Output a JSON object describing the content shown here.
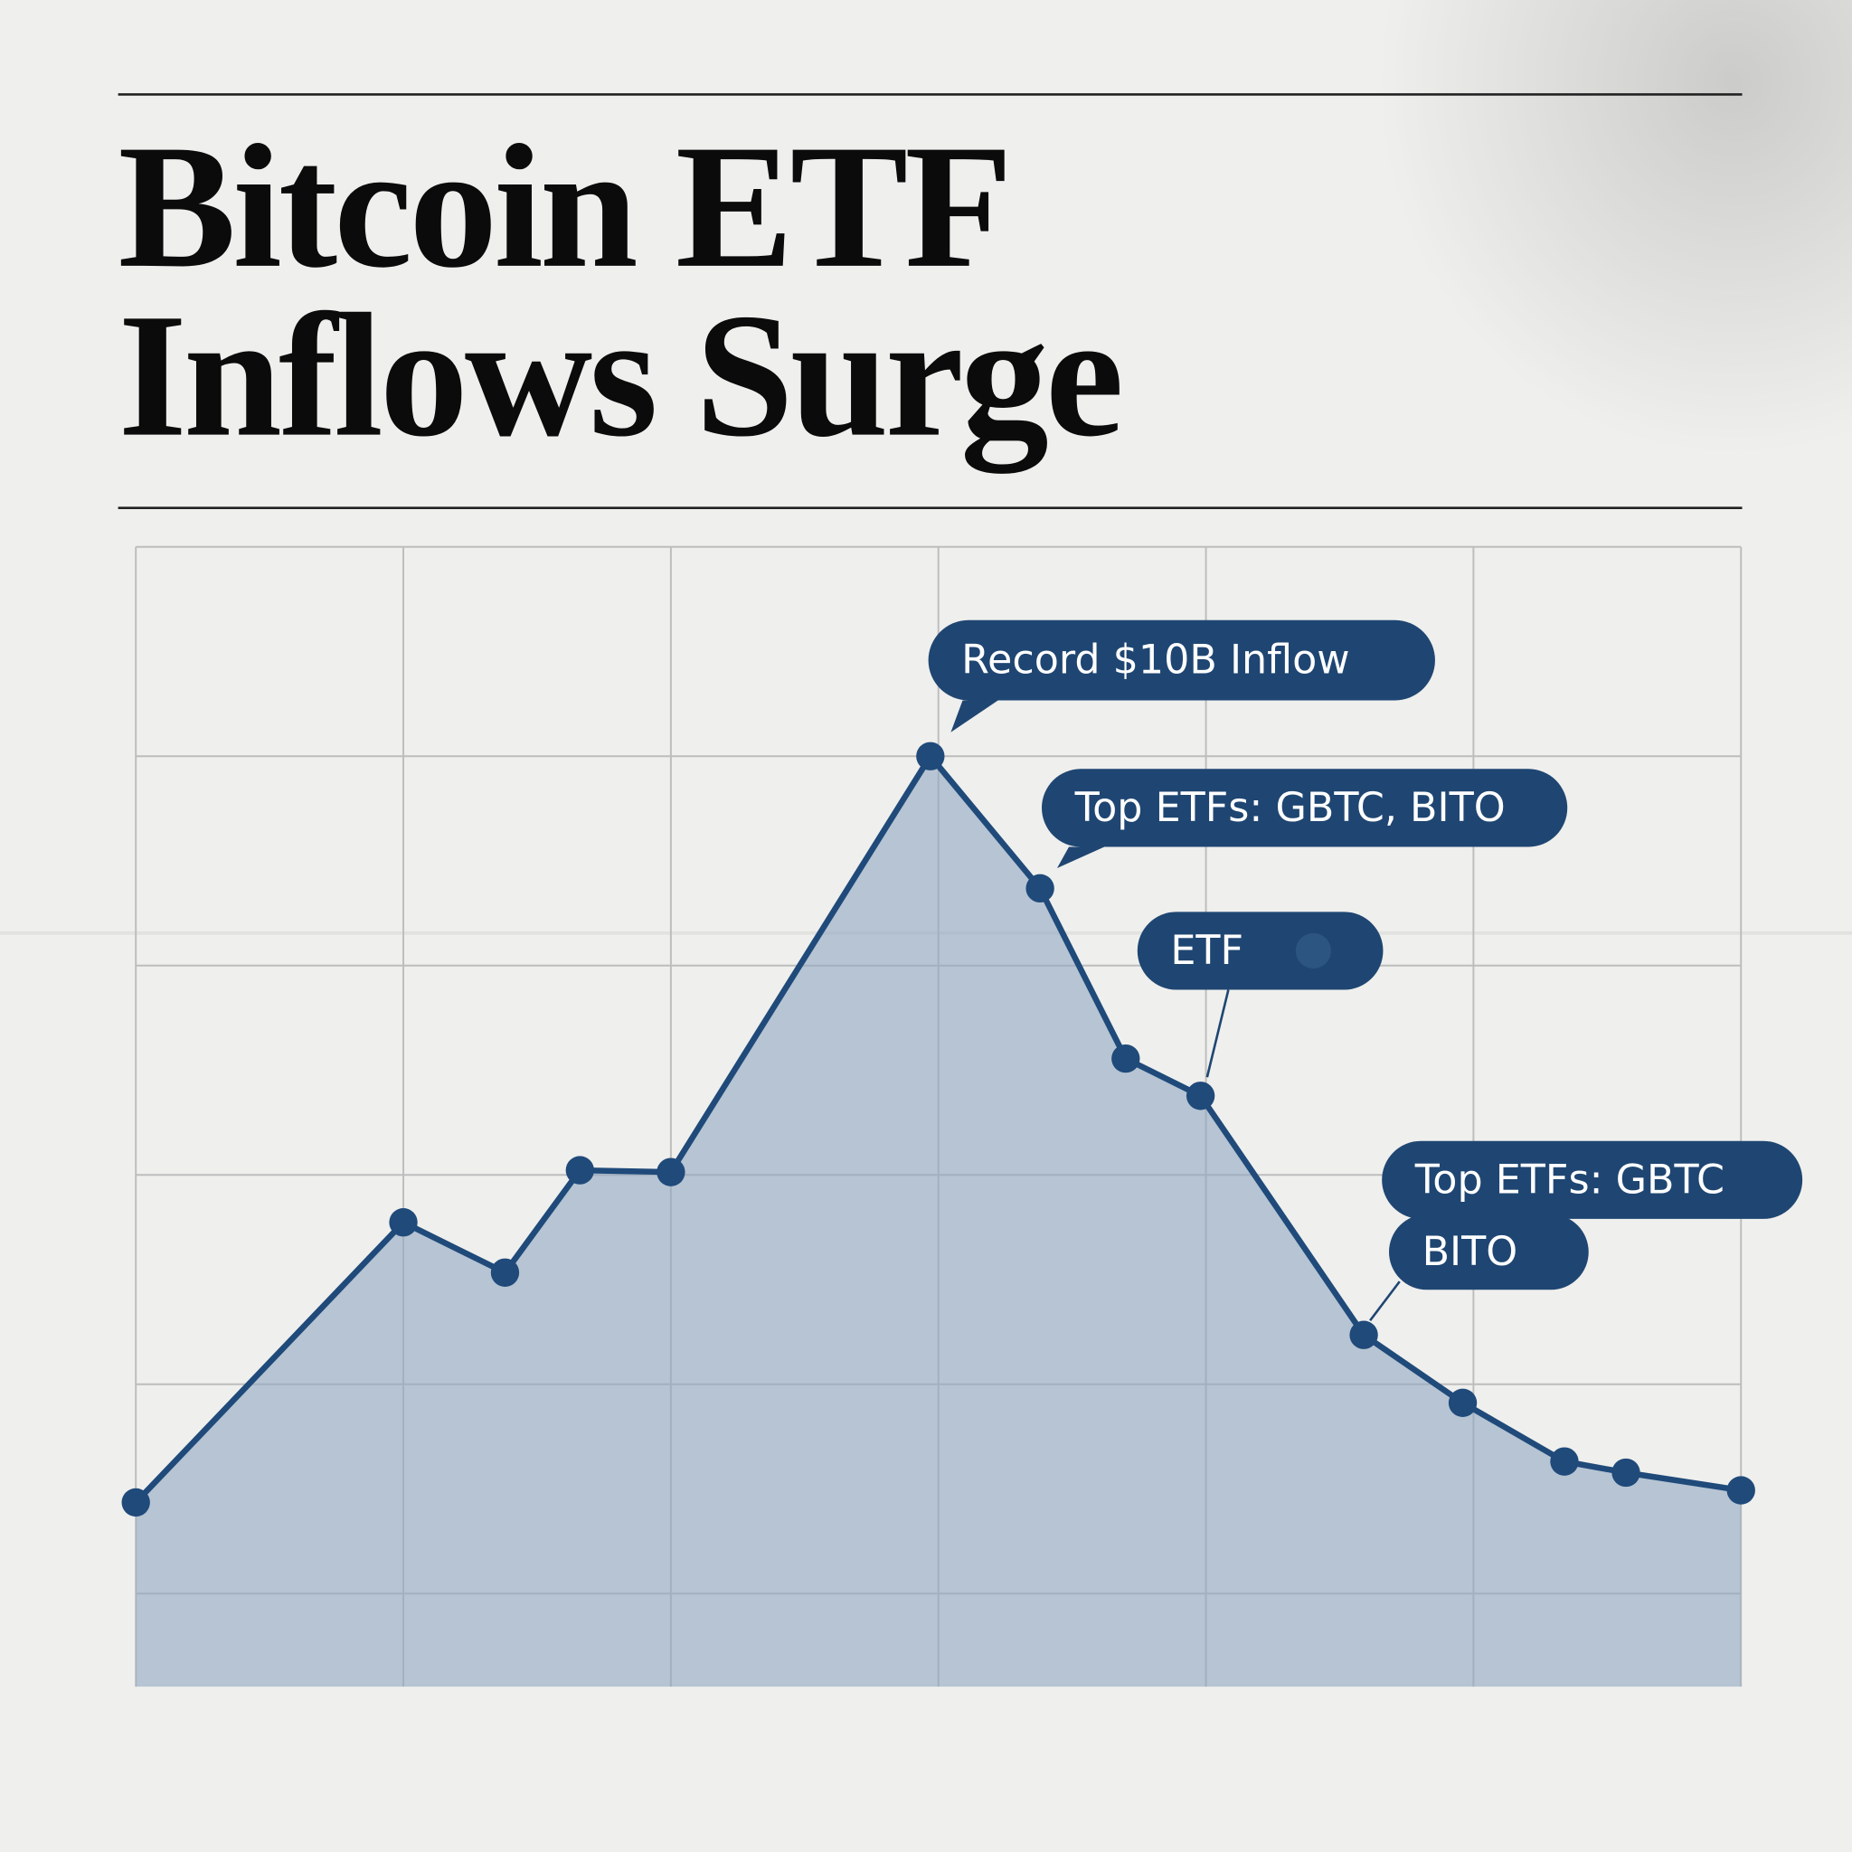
{
  "chart_data": {
    "type": "area",
    "title": [
      "Bitcoin ETF",
      "Inflows Surge"
    ],
    "x": [
      0,
      1,
      1.38,
      1.66,
      2,
      2.97,
      3.38,
      3.7,
      3.98,
      4.59,
      4.96,
      5.34,
      5.57,
      6
    ],
    "values": [
      1.98,
      4.99,
      4.45,
      5.55,
      5.53,
      10,
      8.58,
      6.75,
      6.35,
      3.78,
      3.05,
      2.42,
      2.3,
      2.11
    ],
    "color": "#1f4a7a",
    "fill_color": "#8fa6c2",
    "xlim": [
      0,
      6
    ],
    "xticks": [
      0,
      1,
      2,
      3,
      4,
      5,
      6
    ],
    "ylim": [
      0,
      12.25
    ],
    "yticks": [
      1,
      3.25,
      5.5,
      7.75,
      10,
      12.25
    ],
    "grid": true,
    "annotations": [
      "Record $10B Inflow",
      "Top ETFs: GBTC, BITO",
      "ETF",
      "Top ETFs: GBTC",
      "BITO"
    ]
  }
}
